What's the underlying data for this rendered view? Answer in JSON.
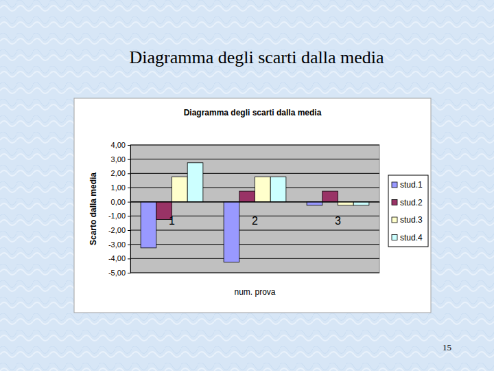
{
  "slide": {
    "title": "Diagramma degli scarti dalla media",
    "page_number": "15"
  },
  "chart_data": {
    "type": "bar",
    "title": "Diagramma degli scarti dalla media",
    "x_label": "num. prova",
    "y_label": "Scarto dalla media",
    "categories": [
      "1",
      "2",
      "3"
    ],
    "series": [
      {
        "name": "stud.1",
        "color": "#9999ff",
        "values": [
          -3.25,
          -4.25,
          -0.25
        ]
      },
      {
        "name": "stud.2",
        "color": "#993366",
        "values": [
          -1.25,
          0.75,
          0.75
        ]
      },
      {
        "name": "stud.3",
        "color": "#ffffcc",
        "values": [
          1.75,
          1.75,
          -0.25
        ]
      },
      {
        "name": "stud.4",
        "color": "#ccffff",
        "values": [
          2.75,
          1.75,
          -0.25
        ]
      }
    ],
    "ylim": [
      -5,
      4
    ],
    "yticks": [
      {
        "value": -5,
        "label": "-5,00"
      },
      {
        "value": -4,
        "label": "-4,00"
      },
      {
        "value": -3,
        "label": "-3,00"
      },
      {
        "value": -2,
        "label": "-2,00"
      },
      {
        "value": -1,
        "label": "-1,00"
      },
      {
        "value": 0,
        "label": "0,00"
      },
      {
        "value": 1,
        "label": "1,00"
      },
      {
        "value": 2,
        "label": "2,00"
      },
      {
        "value": 3,
        "label": "3,00"
      },
      {
        "value": 4,
        "label": "4,00"
      }
    ],
    "grid": true,
    "legend": "right"
  }
}
